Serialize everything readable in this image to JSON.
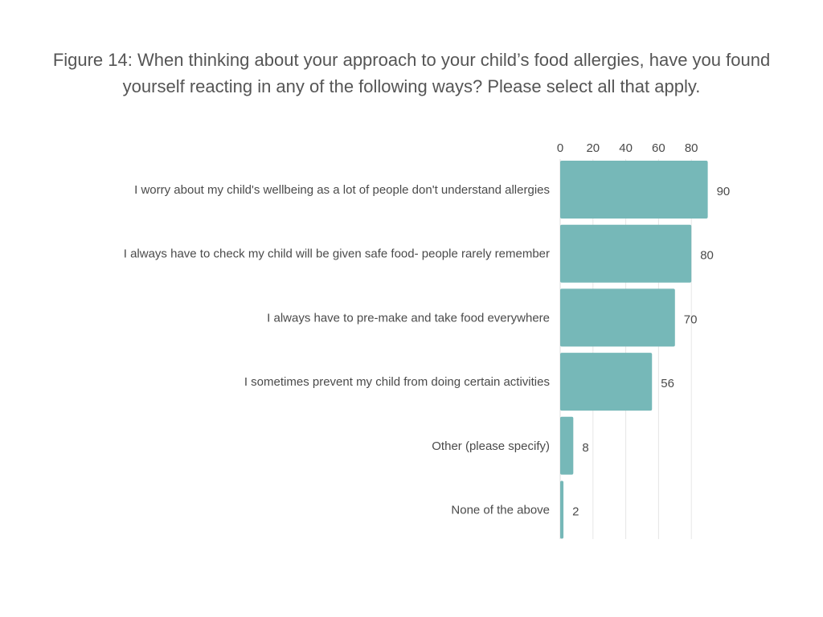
{
  "chart_data": {
    "type": "bar",
    "orientation": "horizontal",
    "title": "Figure 14: When thinking about your approach to your child’s food allergies, have you found yourself reacting in any of the following ways? Please select all that apply.",
    "xlabel": "",
    "ylabel": "",
    "xlim": [
      0,
      90
    ],
    "ticks": [
      0,
      20,
      40,
      60,
      80
    ],
    "grid": true,
    "bar_color": "#76b8b8",
    "categories": [
      "I worry about my child's wellbeing as a lot of people don't understand allergies",
      "I always have to check my child will be given safe food- people rarely remember",
      "I always have to pre-make and take food everywhere",
      "I sometimes prevent my child from doing certain activities",
      "Other (please specify)",
      "None of the above"
    ],
    "values": [
      90,
      80,
      70,
      56,
      8,
      2
    ]
  }
}
